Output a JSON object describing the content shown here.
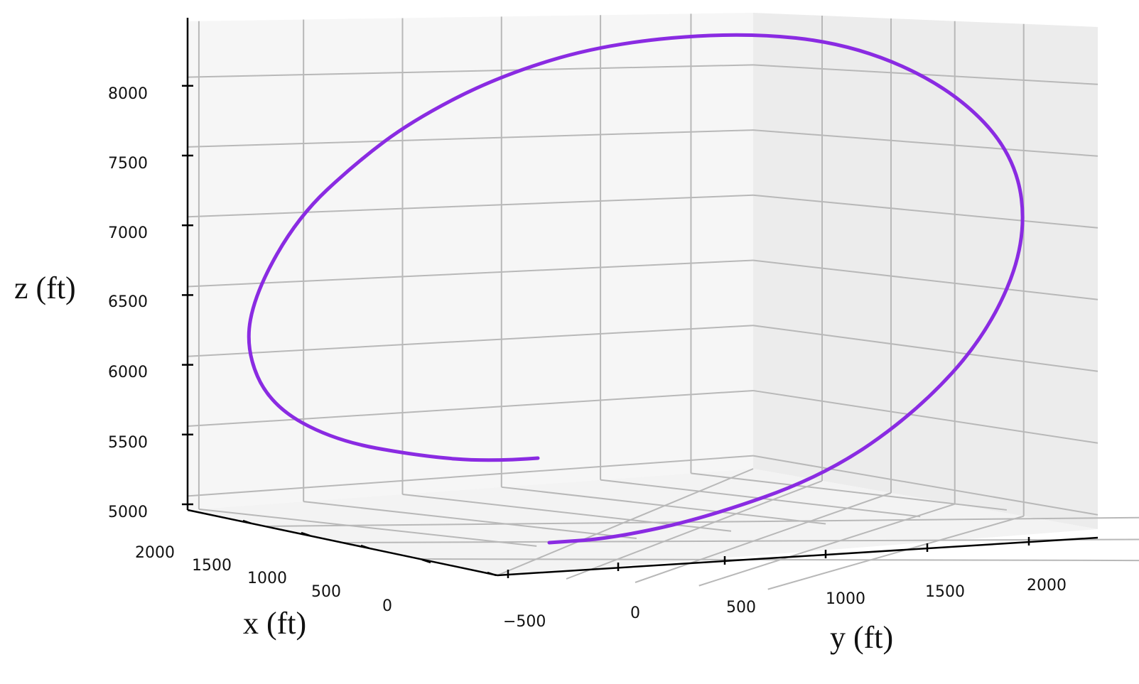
{
  "chart_data": {
    "type": "line",
    "projection": "3d",
    "xlabel": "x (ft)",
    "ylabel": "y (ft)",
    "zlabel": "z (ft)",
    "x_ticks": [
      "2000",
      "1500",
      "1000",
      "500",
      "0"
    ],
    "y_ticks": [
      "−500",
      "0",
      "500",
      "1000",
      "1500",
      "2000"
    ],
    "z_ticks": [
      "5000",
      "5500",
      "6000",
      "6500",
      "7000",
      "7500",
      "8000"
    ],
    "xlim": [
      -200,
      2200
    ],
    "ylim": [
      -700,
      2300
    ],
    "zlim": [
      4900,
      8400
    ],
    "grid": true,
    "series": [
      {
        "color": "#8a2be2",
        "x": [
          1000,
          1200,
          1500,
          1800,
          2000,
          2050,
          2000,
          1800,
          1500,
          1000,
          700,
          300,
          0,
          -100,
          -150,
          -100,
          0,
          300,
          700,
          1000,
          1200,
          1400
        ],
        "y": [
          -350,
          -500,
          -500,
          -300,
          100,
          550,
          1050,
          1600,
          2050,
          2250,
          2200,
          1950,
          1650,
          1400,
          1050,
          650,
          300,
          0,
          -250,
          -350,
          -300,
          -250
        ],
        "z": [
          5250,
          5300,
          5450,
          5700,
          6000,
          6400,
          6900,
          7400,
          7850,
          8150,
          8250,
          8200,
          7950,
          7500,
          7000,
          6400,
          5900,
          5500,
          5200,
          5050,
          5020,
          5000
        ]
      }
    ]
  }
}
